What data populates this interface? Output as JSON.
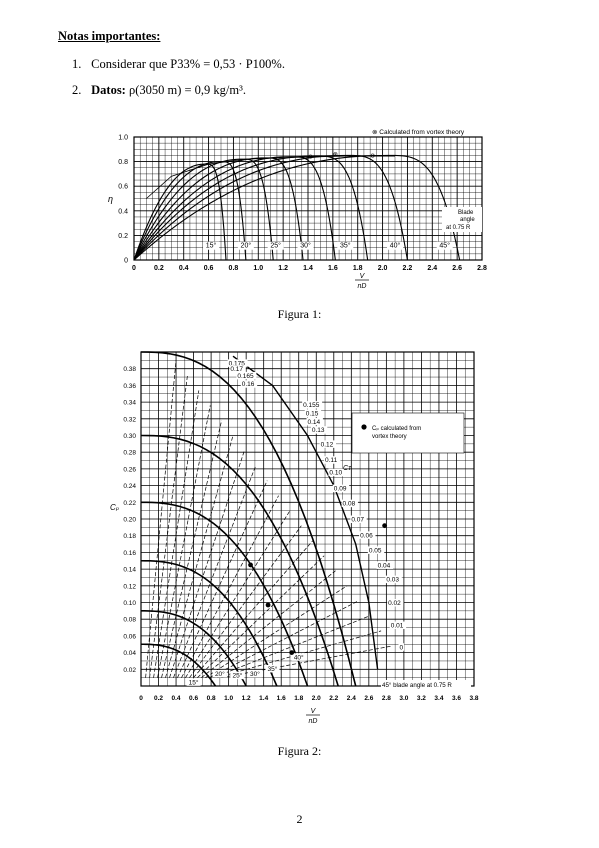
{
  "notes": {
    "title": "Notas importantes:",
    "items": [
      {
        "num": "1.",
        "text": "Considerar que P33% = 0,53 · P100%."
      },
      {
        "num": "2.",
        "label": "Datos:",
        "text": "ρ(3050 m) = 0,9 kg/m³."
      }
    ]
  },
  "figure1": {
    "caption": "Figura 1:",
    "legend": "Calculated from vortex theory",
    "ylabel": "η",
    "xlabel_num": "V",
    "xlabel_den": "nD",
    "blade_label": [
      "Blade",
      "angle",
      "at 0.75 R"
    ],
    "angle_labels": [
      "15°",
      "20°",
      "25°",
      "30°",
      "35°",
      "40°",
      "45°"
    ],
    "y_ticks": [
      "1.0",
      "0.8",
      "0.6",
      "0.4",
      "0.2",
      "0"
    ],
    "x_ticks": [
      "0",
      "0.2",
      "0.4",
      "0.6",
      "0.8",
      "1.0",
      "1.2",
      "1.4",
      "1.6",
      "1.8",
      "2.0",
      "2.2",
      "2.4",
      "2.6",
      "2.8"
    ]
  },
  "figure2": {
    "caption": "Figura 2:",
    "legend": [
      "Cₚ calculated from",
      "vortex theory"
    ],
    "ylabel": "Cₚ",
    "ct_label": "Cᴛ",
    "xlabel_num": "V",
    "xlabel_den": "nD",
    "blade_label": "45° blade angle at 0.75 R",
    "angle_labels": [
      "15°",
      "20°",
      "25°",
      "30°",
      "35°",
      "40°"
    ],
    "ct_values": [
      "0.175",
      "0.17",
      "0.165",
      "0.16",
      "0.155",
      "0.15",
      "0.14",
      "0.13",
      "0.12",
      "0.11",
      "0.10",
      "0.09",
      "0.08",
      "0.07",
      "0.06",
      "0.05",
      "0.04",
      "0.03",
      "0.02",
      "0.01",
      "0"
    ],
    "y_ticks": [
      "0.38",
      "0.36",
      "0.34",
      "0.32",
      "0.30",
      "0.28",
      "0.26",
      "0.24",
      "0.22",
      "0.20",
      "0.18",
      "0.16",
      "0.14",
      "0.12",
      "0.10",
      "0.08",
      "0.06",
      "0.04",
      "0.02"
    ],
    "x_ticks": [
      "0",
      "0.2",
      "0.4",
      "0.6",
      "0.8",
      "1.0",
      "1.2",
      "1.4",
      "1.6",
      "1.8",
      "2.0",
      "2.2",
      "2.4",
      "2.6",
      "2.8",
      "3.0",
      "3.2",
      "3.4",
      "3.6",
      "3.8"
    ]
  },
  "page_number": "2"
}
